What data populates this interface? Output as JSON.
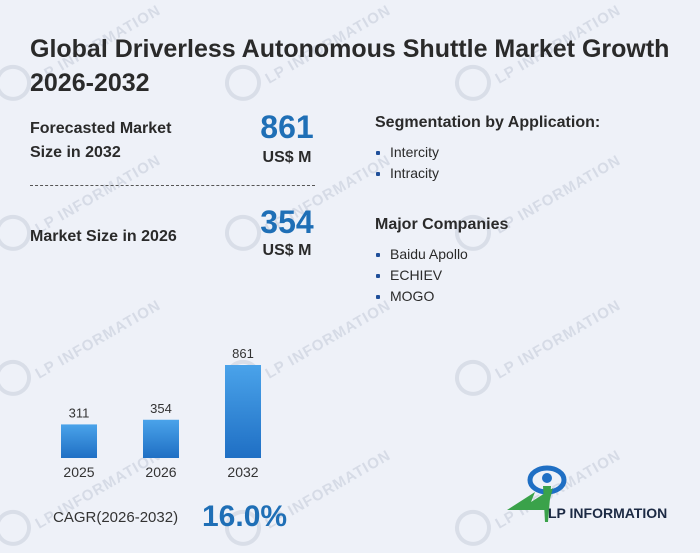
{
  "title": "Global Driverless Autonomous Shuttle Market Growth 2026-2032",
  "stats": [
    {
      "label_line1": "Forecasted Market",
      "label_line2": "Size in 2032",
      "value": "861",
      "unit": "US$ M"
    },
    {
      "label_line1": "Market Size in 2026",
      "value": "354",
      "unit": "US$ M"
    }
  ],
  "segmentation": {
    "heading": "Segmentation by Application:",
    "items": [
      "Intercity",
      "Intracity"
    ]
  },
  "companies": {
    "heading": "Major Companies",
    "items": [
      "Baidu Apollo",
      "ECHIEV",
      "MOGO"
    ]
  },
  "chart_data": {
    "type": "bar",
    "categories": [
      "2025",
      "2026",
      "2032"
    ],
    "values": [
      311,
      354,
      861
    ],
    "title": "",
    "xlabel": "",
    "ylabel": "",
    "ylim": [
      0,
      861
    ],
    "grid": false,
    "bar_color_top": "#4aa3ea",
    "bar_color_bottom": "#1f6fc4"
  },
  "cagr": {
    "label": "CAGR(2026-2032)",
    "value": "16.0%"
  },
  "logo": {
    "text": "LP INFORMATION",
    "watermark_text": "LP INFORMATION"
  },
  "colors": {
    "accent": "#1f6fb6",
    "logo_green": "#3aa24a",
    "logo_blue": "#1f6fc4",
    "background": "#eef1f8"
  }
}
